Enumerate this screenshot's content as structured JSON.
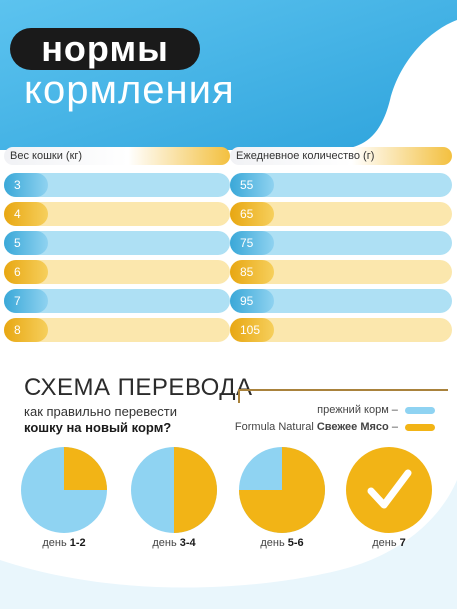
{
  "header": {
    "title": "нормы",
    "subtitle": "кормления"
  },
  "table": {
    "col1_header": "Вес кошки (кг)",
    "col2_header": "Ежедневное количество (г)",
    "rows": [
      {
        "weight": "3",
        "amount": "55",
        "color": "blue"
      },
      {
        "weight": "4",
        "amount": "65",
        "color": "yellow"
      },
      {
        "weight": "5",
        "amount": "75",
        "color": "blue"
      },
      {
        "weight": "6",
        "amount": "85",
        "color": "yellow"
      },
      {
        "weight": "7",
        "amount": "95",
        "color": "blue"
      },
      {
        "weight": "8",
        "amount": "105",
        "color": "yellow"
      }
    ]
  },
  "transition": {
    "title": "СХЕМА ПЕРЕВОДА",
    "subtitle_line1": "как правильно перевести",
    "subtitle_line2": "кошку на новый корм?",
    "legend_old": "прежний корм –",
    "legend_new_prefix": "Formula Natural",
    "legend_new_bold": "Свежее Мясо",
    "legend_new_suffix": "–",
    "colors": {
      "old": "#8fd3f2",
      "new": "#f2b416"
    },
    "days": [
      {
        "prefix": "день",
        "label": "1-2",
        "new_share": 0.25
      },
      {
        "prefix": "день",
        "label": "3-4",
        "new_share": 0.5
      },
      {
        "prefix": "день",
        "label": "5-6",
        "new_share": 0.75
      },
      {
        "prefix": "день",
        "label": "7",
        "new_share": 1.0,
        "icon": "checkmark-icon"
      }
    ]
  }
}
